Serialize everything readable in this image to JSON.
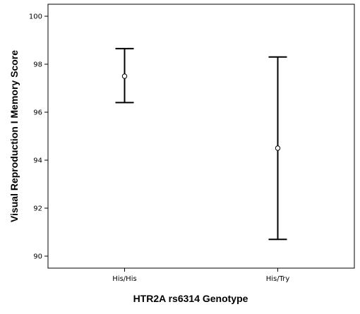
{
  "chart_data": {
    "type": "errorbar",
    "title": "",
    "xlabel": "HTR2A rs6314 Genotype",
    "ylabel": "Visual Reproduction I Memory Score",
    "categories": [
      "His/His",
      "His/Try"
    ],
    "series": [
      {
        "mean": [
          97.5,
          94.5
        ],
        "lower": [
          96.4,
          90.7
        ],
        "upper": [
          98.65,
          98.3
        ]
      }
    ],
    "ylim": [
      89.5,
      100.5
    ],
    "yticks": [
      90,
      92,
      94,
      96,
      98,
      100
    ],
    "grid": false,
    "legend": "none"
  }
}
